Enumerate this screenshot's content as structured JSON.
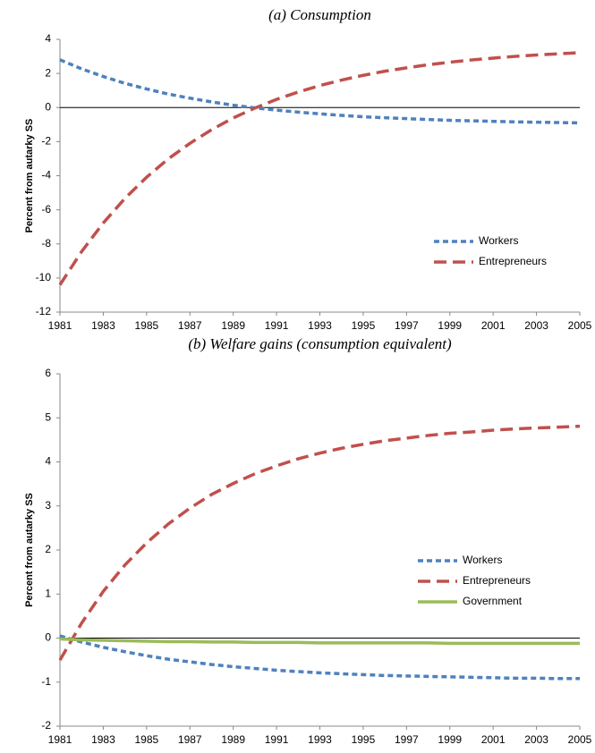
{
  "chart_data": [
    {
      "type": "line",
      "title": "(a) Consumption",
      "y_label": "Percent from autarky SS",
      "x": [
        1981,
        1982,
        1983,
        1984,
        1985,
        1986,
        1987,
        1988,
        1989,
        1990,
        1991,
        1992,
        1993,
        1994,
        1995,
        1996,
        1997,
        1998,
        1999,
        2000,
        2001,
        2002,
        2003,
        2004,
        2005
      ],
      "xlim": [
        1981,
        2005
      ],
      "xticks": [
        1981,
        1983,
        1985,
        1987,
        1989,
        1991,
        1993,
        1995,
        1997,
        1999,
        2001,
        2003,
        2005
      ],
      "ylim": [
        -12,
        4
      ],
      "yticks": [
        -12,
        -10,
        -8,
        -6,
        -4,
        -2,
        0,
        2,
        4
      ],
      "series": [
        {
          "name": "Workers",
          "color": "#4f81bd",
          "dash": "short",
          "values": [
            2.8,
            2.27,
            1.82,
            1.42,
            1.09,
            0.79,
            0.55,
            0.33,
            0.14,
            -0.02,
            -0.15,
            -0.27,
            -0.37,
            -0.46,
            -0.54,
            -0.6,
            -0.65,
            -0.7,
            -0.75,
            -0.78,
            -0.81,
            -0.84,
            -0.86,
            -0.88,
            -0.9
          ]
        },
        {
          "name": "Entrepreneurs",
          "color": "#c0504d",
          "dash": "long",
          "values": [
            -10.4,
            -8.45,
            -6.77,
            -5.33,
            -4.09,
            -3.01,
            -2.1,
            -1.3,
            -0.61,
            -0.03,
            0.48,
            0.91,
            1.29,
            1.61,
            1.89,
            2.13,
            2.33,
            2.51,
            2.66,
            2.79,
            2.9,
            3.0,
            3.08,
            3.15,
            3.22
          ]
        }
      ]
    },
    {
      "type": "line",
      "title": "(b) Welfare gains (consumption equivalent)",
      "y_label": "Percent from autarky SS",
      "x": [
        1981,
        1982,
        1983,
        1984,
        1985,
        1986,
        1987,
        1988,
        1989,
        1990,
        1991,
        1992,
        1993,
        1994,
        1995,
        1996,
        1997,
        1998,
        1999,
        2000,
        2001,
        2002,
        2003,
        2004,
        2005
      ],
      "xlim": [
        1981,
        2005
      ],
      "xticks": [
        1981,
        1983,
        1985,
        1987,
        1989,
        1991,
        1993,
        1995,
        1997,
        1999,
        2001,
        2003,
        2005
      ],
      "ylim": [
        -2,
        6
      ],
      "yticks": [
        -2,
        -1,
        0,
        1,
        2,
        3,
        4,
        5,
        6
      ],
      "series": [
        {
          "name": "Workers",
          "color": "#4f81bd",
          "dash": "short",
          "values": [
            0.05,
            -0.09,
            -0.21,
            -0.31,
            -0.4,
            -0.48,
            -0.54,
            -0.6,
            -0.65,
            -0.69,
            -0.73,
            -0.76,
            -0.79,
            -0.81,
            -0.83,
            -0.85,
            -0.86,
            -0.87,
            -0.88,
            -0.89,
            -0.9,
            -0.91,
            -0.91,
            -0.92,
            -0.92
          ]
        },
        {
          "name": "Entrepreneurs",
          "color": "#c0504d",
          "dash": "long",
          "values": [
            -0.5,
            0.34,
            1.06,
            1.66,
            2.16,
            2.59,
            2.95,
            3.26,
            3.51,
            3.73,
            3.91,
            4.07,
            4.2,
            4.31,
            4.4,
            4.48,
            4.54,
            4.6,
            4.65,
            4.68,
            4.72,
            4.75,
            4.77,
            4.79,
            4.81
          ]
        },
        {
          "name": "Government",
          "color": "#9bbb59",
          "dash": "solid",
          "values": [
            -0.02,
            -0.04,
            -0.05,
            -0.06,
            -0.07,
            -0.08,
            -0.08,
            -0.09,
            -0.09,
            -0.1,
            -0.1,
            -0.1,
            -0.11,
            -0.11,
            -0.11,
            -0.11,
            -0.11,
            -0.11,
            -0.12,
            -0.12,
            -0.12,
            -0.12,
            -0.12,
            -0.12,
            -0.12
          ]
        }
      ]
    }
  ]
}
